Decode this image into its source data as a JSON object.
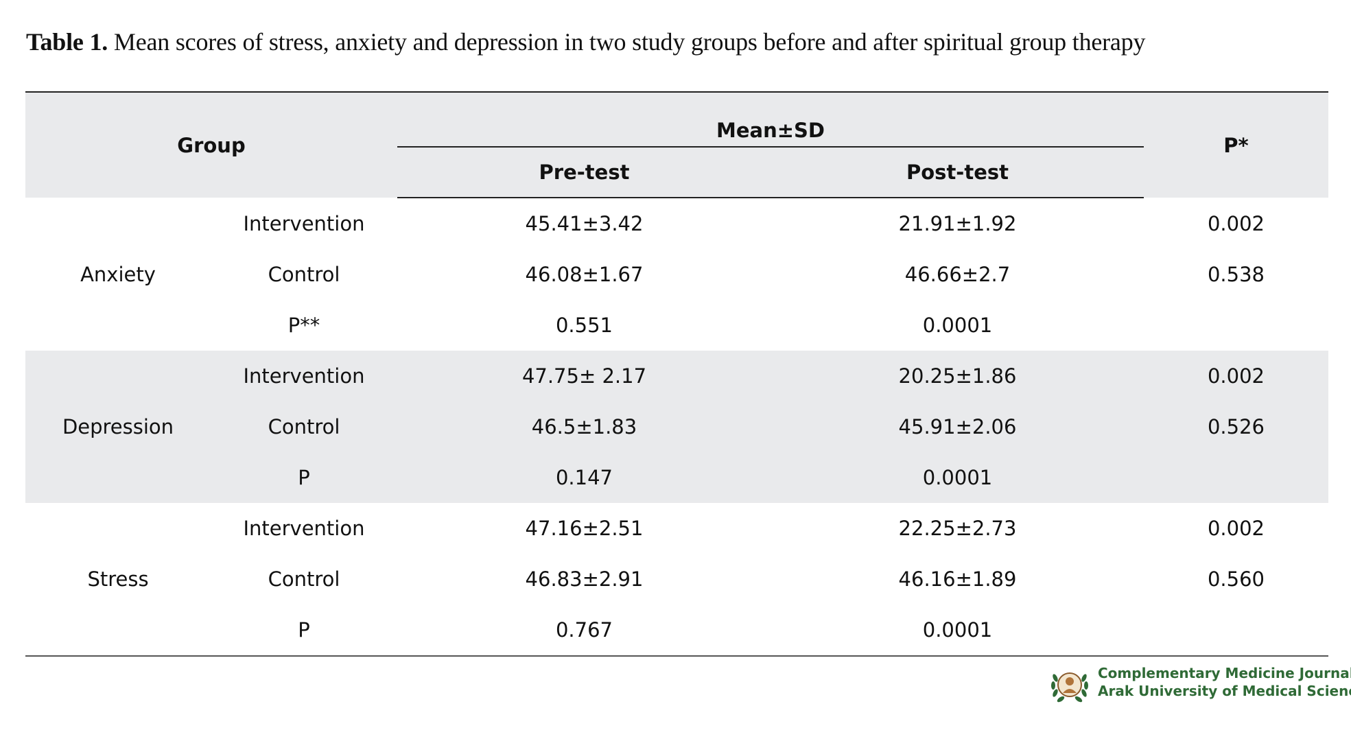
{
  "caption": {
    "label": "Table 1.",
    "text": " Mean scores of stress, anxiety and depression in two study groups before and after spiritual group therapy"
  },
  "table": {
    "header": {
      "group": "Group",
      "mean_sd": "Mean±SD",
      "pre": "Pre-test",
      "post": "Post-test",
      "p": "P*"
    },
    "sections": [
      {
        "name": "Anxiety",
        "rows": [
          {
            "sub": "Intervention",
            "pre": "45.41±3.42",
            "post": "21.91±1.92",
            "p": "0.002"
          },
          {
            "sub": "Control",
            "pre": "46.08±1.67",
            "post": "46.66±2.7",
            "p": "0.538"
          },
          {
            "sub": "P**",
            "pre": "0.551",
            "post": "0.0001",
            "p": ""
          }
        ]
      },
      {
        "name": "Depression",
        "rows": [
          {
            "sub": "Intervention",
            "pre": "47.75± 2.17",
            "post": "20.25±1.86",
            "p": "0.002"
          },
          {
            "sub": "Control",
            "pre": "46.5±1.83",
            "post": "45.91±2.06",
            "p": "0.526"
          },
          {
            "sub": "P",
            "pre": "0.147",
            "post": "0.0001",
            "p": ""
          }
        ]
      },
      {
        "name": "Stress",
        "rows": [
          {
            "sub": "Intervention",
            "pre": "47.16±2.51",
            "post": "22.25±2.73",
            "p": "0.002"
          },
          {
            "sub": "Control",
            "pre": "46.83±2.91",
            "post": "46.16±1.89",
            "p": "0.560"
          },
          {
            "sub": "P",
            "pre": "0.767",
            "post": "0.0001",
            "p": ""
          }
        ]
      }
    ]
  },
  "logo": {
    "line1": "Complementary Medicine Journal",
    "line2": "Arak University of Medical Sciences",
    "color": "#2f6a36",
    "icon": "laurel-portrait-emblem"
  },
  "colors": {
    "header_bg": "#e9eaec",
    "band_bg": "#e9eaec",
    "text": "#111111"
  }
}
